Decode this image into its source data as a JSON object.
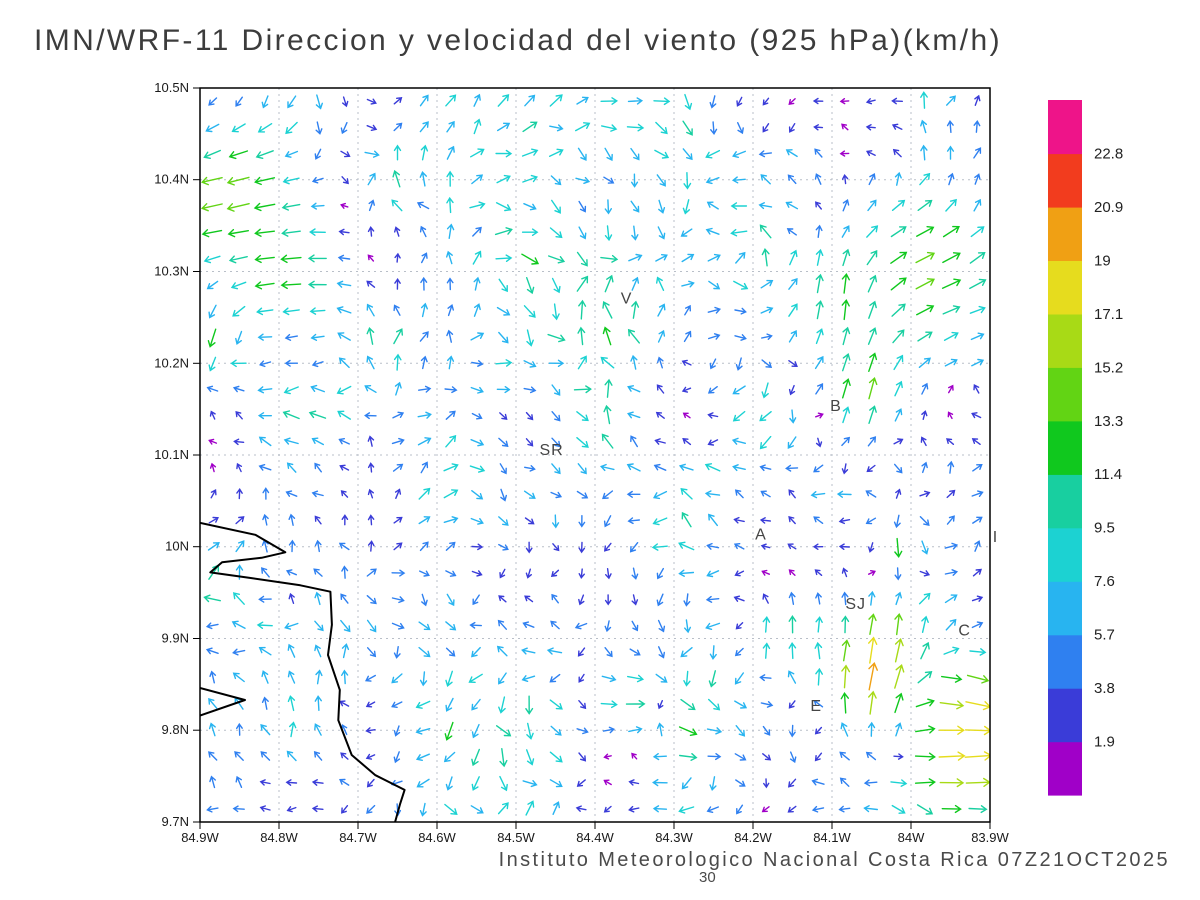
{
  "title": "IMN/WRF-11 Direccion y velocidad del viento (925 hPa)(km/h)",
  "footer": {
    "credit": "Instituto Meteorologico Nacional Costa Rica 07Z21OCT2025",
    "frame_label": "30"
  },
  "chart_data": {
    "type": "vector_field",
    "title": "IMN/WRF-11 Direccion y velocidad del viento (925 hPa)(km/h)",
    "unit": "km/h",
    "level": "925 hPa",
    "x_axis": {
      "tick_values": [
        -84.9,
        -84.8,
        -84.7,
        -84.6,
        -84.5,
        -84.4,
        -84.3,
        -84.2,
        -84.1,
        -84.0,
        -83.9
      ],
      "tick_labels": [
        "84.9W",
        "84.8W",
        "84.7W",
        "84.6W",
        "84.5W",
        "84.4W",
        "84.3W",
        "84.2W",
        "84.1W",
        "84W",
        "83.9W"
      ],
      "min": -84.9,
      "max": -83.9
    },
    "y_axis": {
      "tick_values": [
        9.7,
        9.8,
        9.9,
        10.0,
        10.1,
        10.2,
        10.3,
        10.4,
        10.5
      ],
      "tick_labels": [
        "9.7N",
        "9.8N",
        "9.9N",
        "10N",
        "10.1N",
        "10.2N",
        "10.3N",
        "10.4N",
        "10.5N"
      ],
      "min": 9.7,
      "max": 10.5
    },
    "colorbar": {
      "unit": "km/h",
      "levels": [
        1.9,
        3.8,
        5.7,
        7.6,
        9.5,
        11.4,
        13.3,
        15.2,
        17.1,
        19,
        20.9,
        22.8
      ],
      "level_labels": [
        "1.9",
        "3.8",
        "5.7",
        "7.6",
        "9.5",
        "11.4",
        "13.3",
        "15.2",
        "17.1",
        "19",
        "20.9",
        "22.8"
      ],
      "colors": [
        "#a000c8",
        "#3a3cd8",
        "#2f80f0",
        "#28b4f0",
        "#1cd2d2",
        "#18cfa0",
        "#10c81e",
        "#62d414",
        "#a8da16",
        "#e6dc1e",
        "#f0a014",
        "#f23c1e",
        "#ee1489"
      ]
    },
    "grid": {
      "nx": 30,
      "ny": 28,
      "seed": 11
    },
    "background_flow": {
      "speed_min": 1.5,
      "speed_max": 10.5
    },
    "features": [
      {
        "lon": -84.85,
        "lat": 10.38,
        "sigma": 0.065,
        "speed": 16,
        "dir_deg": 195
      },
      {
        "lon": -84.79,
        "lat": 10.31,
        "sigma": 0.05,
        "speed": 13,
        "dir_deg": 185
      },
      {
        "lon": -83.99,
        "lat": 10.3,
        "sigma": 0.075,
        "speed": 14,
        "dir_deg": 25
      },
      {
        "lon": -84.06,
        "lat": 10.17,
        "sigma": 0.04,
        "speed": 15,
        "dir_deg": 75
      },
      {
        "lon": -84.09,
        "lat": 10.27,
        "sigma": 0.045,
        "speed": 13,
        "dir_deg": 85
      },
      {
        "lon": -84.04,
        "lat": 9.86,
        "sigma": 0.05,
        "speed": 21,
        "dir_deg": 80
      },
      {
        "lon": -83.92,
        "lat": 9.82,
        "sigma": 0.05,
        "speed": 18,
        "dir_deg": -20
      },
      {
        "lon": -83.93,
        "lat": 9.77,
        "sigma": 0.04,
        "speed": 19,
        "dir_deg": 5
      },
      {
        "lon": -84.36,
        "lat": 9.83,
        "sigma": 0.03,
        "speed": 12,
        "dir_deg": 0
      },
      {
        "lon": -84.17,
        "lat": 9.9,
        "sigma": 0.03,
        "speed": 12,
        "dir_deg": 80
      },
      {
        "lon": -84.01,
        "lat": 10.0,
        "sigma": 0.03,
        "speed": 12,
        "dir_deg": -85
      }
    ],
    "stations": [
      {
        "label": "V",
        "lon": -84.36,
        "lat": 10.265
      },
      {
        "label": "B",
        "lon": -84.095,
        "lat": 10.148
      },
      {
        "label": "SR",
        "lon": -84.455,
        "lat": 10.1
      },
      {
        "label": "A",
        "lon": -84.19,
        "lat": 10.008
      },
      {
        "label": "SJ",
        "lon": -84.07,
        "lat": 9.932
      },
      {
        "label": "C",
        "lon": -83.932,
        "lat": 9.903
      },
      {
        "label": "E",
        "lon": -84.12,
        "lat": 9.821
      },
      {
        "label": "I",
        "lon": -83.893,
        "lat": 10.005
      }
    ],
    "coastline": [
      [
        [
          -84.9,
          10.026
        ],
        [
          -84.83,
          10.013
        ],
        [
          -84.792,
          9.994
        ],
        [
          -84.822,
          9.988
        ],
        [
          -84.872,
          9.983
        ],
        [
          -84.887,
          9.972
        ],
        [
          -84.837,
          9.966
        ],
        [
          -84.773,
          9.958
        ],
        [
          -84.735,
          9.951
        ],
        [
          -84.733,
          9.915
        ],
        [
          -84.738,
          9.882
        ],
        [
          -84.723,
          9.844
        ],
        [
          -84.725,
          9.811
        ],
        [
          -84.708,
          9.773
        ],
        [
          -84.678,
          9.751
        ],
        [
          -84.641,
          9.735
        ],
        [
          -84.647,
          9.719
        ],
        [
          -84.653,
          9.7
        ]
      ],
      [
        [
          -84.9,
          9.846
        ],
        [
          -84.843,
          9.833
        ],
        [
          -84.9,
          9.816
        ]
      ]
    ]
  }
}
